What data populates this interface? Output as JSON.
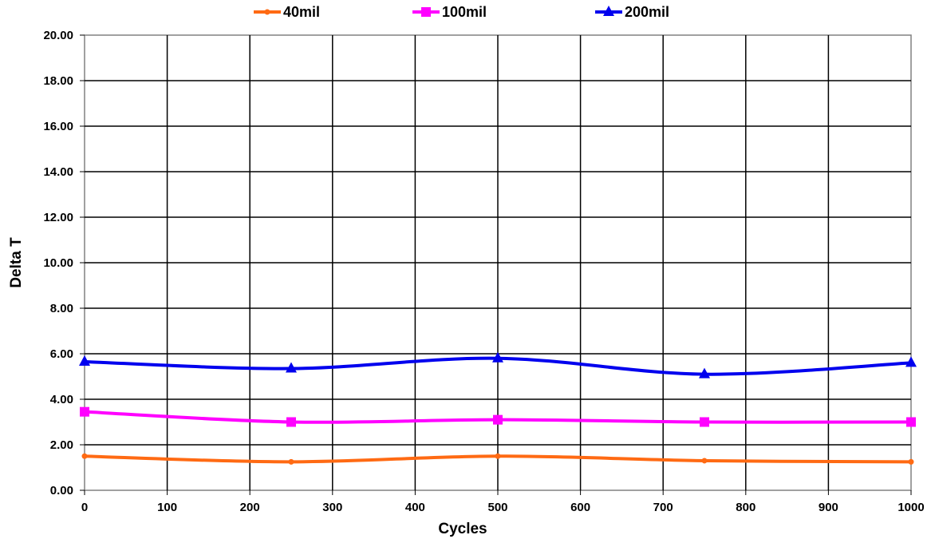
{
  "chart_data": {
    "type": "line",
    "title": "",
    "xlabel": "Cycles",
    "ylabel": "Delta T",
    "xlim": [
      0,
      1000
    ],
    "ylim": [
      0,
      20
    ],
    "x_ticks": [
      "0",
      "100",
      "200",
      "300",
      "400",
      "500",
      "600",
      "700",
      "800",
      "900",
      "1000"
    ],
    "y_ticks": [
      "0.00",
      "2.00",
      "4.00",
      "6.00",
      "8.00",
      "10.00",
      "12.00",
      "14.00",
      "16.00",
      "18.00",
      "20.00"
    ],
    "grid": true,
    "legend_position": "top",
    "x": [
      0,
      250,
      500,
      750,
      1000
    ],
    "series": [
      {
        "name": "40mil",
        "color": "#ff6a13",
        "marker": "dot",
        "values": [
          1.5,
          1.25,
          1.5,
          1.3,
          1.25
        ]
      },
      {
        "name": "100mil",
        "color": "#ff00ff",
        "marker": "square",
        "values": [
          3.45,
          3.0,
          3.1,
          3.0,
          3.0
        ]
      },
      {
        "name": "200mil",
        "color": "#0000ee",
        "marker": "triangle",
        "values": [
          5.65,
          5.35,
          5.8,
          5.1,
          5.6
        ]
      }
    ]
  }
}
